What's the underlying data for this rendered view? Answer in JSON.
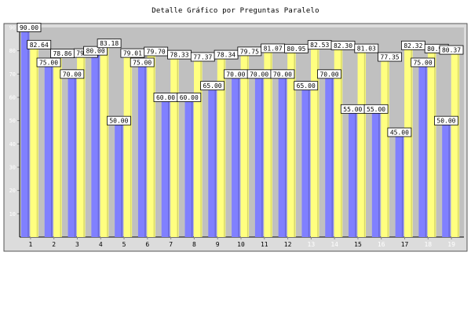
{
  "chart_data": {
    "type": "bar",
    "title": "Detalle Gráfico por Preguntas Paralelo",
    "xlabel": "",
    "ylabel": "",
    "categories": [
      "1",
      "2",
      "3",
      "4",
      "5",
      "6",
      "7",
      "8",
      "9",
      "10",
      "11",
      "12",
      "13",
      "14",
      "15",
      "16",
      "17",
      "18",
      "19"
    ],
    "series": [
      {
        "values": [
          90.0,
          75.0,
          70.0,
          80.0,
          50.0,
          75.0,
          60.0,
          60.0,
          65.0,
          70.0,
          70.0,
          70.0,
          65.0,
          70.0,
          55.0,
          55.0,
          45.0,
          75.0,
          50.0
        ]
      },
      {
        "values": [
          82.64,
          78.86,
          79.0,
          83.18,
          79.01,
          79.7,
          78.33,
          77.37,
          78.34,
          79.75,
          81.07,
          80.95,
          82.53,
          82.3,
          81.03,
          77.35,
          82.32,
          80.96,
          80.37
        ]
      }
    ],
    "data_labels": [
      [
        "90.00",
        "75.00",
        "70.00",
        "80.00",
        "50.00",
        "75.00",
        "60.00",
        "60.00",
        "65.00",
        "70.00",
        "70.00",
        "70.00",
        "65.00",
        "70.00",
        "55.00",
        "55.00",
        "45.00",
        "75.00",
        "50.00"
      ],
      [
        "82.64",
        "78.86",
        "79.00",
        "83.18",
        "79.01",
        "79.70",
        "78.33",
        "77.37",
        "78.34",
        "79.75",
        "81.07",
        "80.95",
        "82.53",
        "82.30",
        "81.03",
        "77.35",
        "82.32",
        "80.96",
        "80.37"
      ]
    ],
    "ylim": [
      0,
      90
    ],
    "yticks": [
      "10",
      "20",
      "30",
      "40",
      "50",
      "60",
      "70",
      "80",
      "90"
    ],
    "grid": false,
    "legend": "none",
    "colors": {
      "series1": "#8080ff",
      "series2": "#ffff80",
      "plot_background": "#c0c0c0",
      "frame_background": "#dcdcdc",
      "tick_text": "#000000",
      "tick_text_light": "#ffffff"
    }
  }
}
